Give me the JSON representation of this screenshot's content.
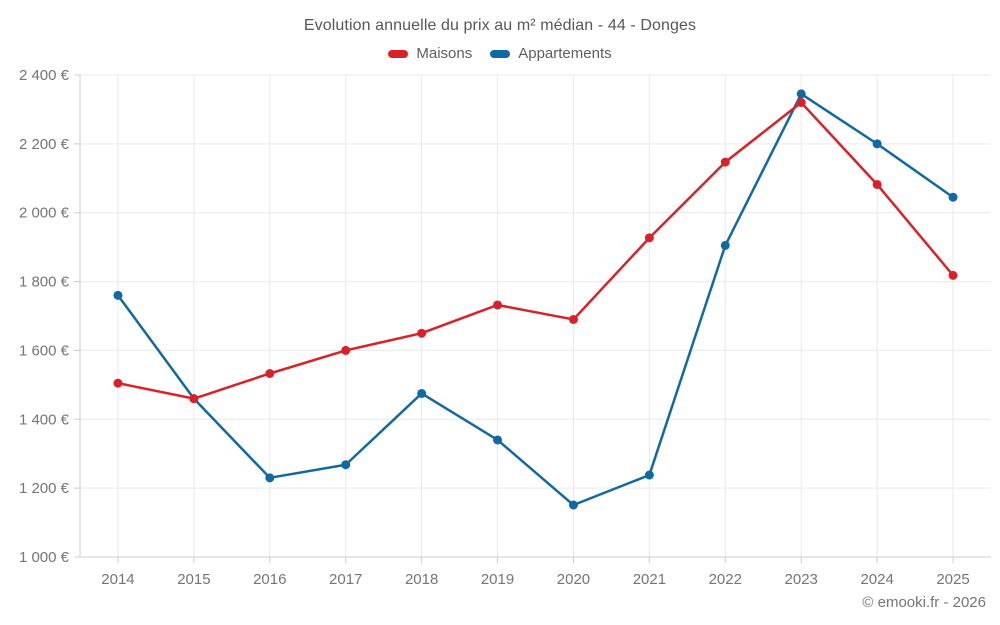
{
  "footer": {
    "copyright": "© emooki.fr - 2026"
  },
  "theme": {
    "background": "#ffffff",
    "grid_color": "#e9e9e9",
    "axis_color": "#cccccc",
    "tick_text_color": "#757575",
    "title_color": "#575757",
    "legend_text_color": "#5e5e5e"
  },
  "chart_data": {
    "type": "line",
    "title": "Evolution annuelle du prix au m² médian - 44 - Donges",
    "xlabel": "",
    "ylabel": "",
    "categories": [
      "2014",
      "2015",
      "2016",
      "2017",
      "2018",
      "2019",
      "2020",
      "2021",
      "2022",
      "2023",
      "2024",
      "2025"
    ],
    "series": [
      {
        "name": "Maisons",
        "color": "#da2128",
        "values": [
          1505,
          1460,
          1533,
          1600,
          1650,
          1732,
          1690,
          1927,
          2147,
          2320,
          2082,
          1818
        ]
      },
      {
        "name": "Appartements",
        "color": "#1169a4",
        "values": [
          1760,
          1460,
          1230,
          1268,
          1475,
          1340,
          1151,
          1238,
          1905,
          2345,
          2200,
          2045
        ]
      }
    ],
    "ylim": [
      1000,
      2400
    ],
    "y_ticks": [
      {
        "value": 1000,
        "label": "1 000 €"
      },
      {
        "value": 1200,
        "label": "1 200 €"
      },
      {
        "value": 1400,
        "label": "1 400 €"
      },
      {
        "value": 1600,
        "label": "1 600 €"
      },
      {
        "value": 1800,
        "label": "1 800 €"
      },
      {
        "value": 2000,
        "label": "2 000 €"
      },
      {
        "value": 2200,
        "label": "2 200 €"
      },
      {
        "value": 2400,
        "label": "2 400 €"
      }
    ],
    "grid": true,
    "legend_position": "top"
  }
}
